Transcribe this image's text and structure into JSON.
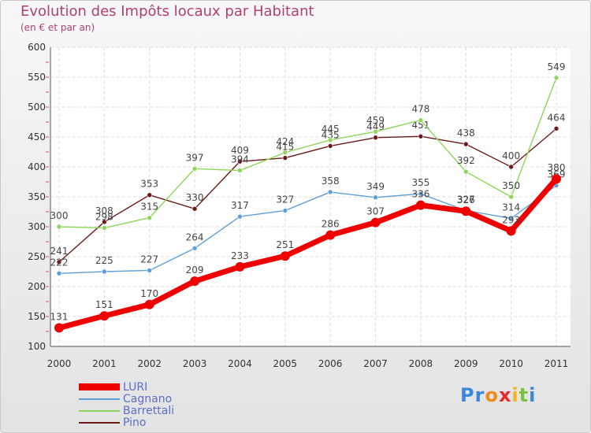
{
  "chart_data": {
    "type": "line",
    "title": "Evolution des Impôts locaux par Habitant",
    "subtitle": "(en € et par an)",
    "categories": [
      "2000",
      "2001",
      "2002",
      "2003",
      "2004",
      "2005",
      "2006",
      "2007",
      "2008",
      "2009",
      "2010",
      "2011"
    ],
    "y_ticks": [
      "100",
      "150",
      "200",
      "250",
      "300",
      "350",
      "400",
      "450",
      "500",
      "550",
      "600"
    ],
    "ylim": [
      100,
      600
    ],
    "grid": true,
    "legend": "bottom-left",
    "series": [
      {
        "name": "Pino",
        "color": "#6b1a1a",
        "values": [
          241,
          308,
          353,
          330,
          409,
          415,
          435,
          449,
          451,
          438,
          400,
          464
        ],
        "labels": [
          "241",
          "308",
          "353",
          "330",
          "409",
          "415",
          "435",
          "449",
          "451",
          "438",
          "400",
          "464"
        ]
      },
      {
        "name": "Barrettali",
        "color": "#8ed65a",
        "values": [
          300,
          298,
          315,
          397,
          394,
          424,
          445,
          459,
          478,
          392,
          350,
          549
        ],
        "labels": [
          "300",
          "298",
          "315",
          "397",
          "394",
          "424",
          "445",
          "459",
          "478",
          "392",
          "350",
          "549"
        ]
      },
      {
        "name": "Cagnano",
        "color": "#5f9ed6",
        "values": [
          222,
          225,
          227,
          264,
          317,
          327,
          358,
          349,
          355,
          327,
          314,
          369
        ],
        "labels": [
          "222",
          "225",
          "227",
          "264",
          "317",
          "327",
          "358",
          "349",
          "355",
          "327",
          "314",
          "369"
        ]
      },
      {
        "name": "LURI",
        "color": "#ee0000",
        "values": [
          131,
          151,
          170,
          209,
          233,
          251,
          286,
          307,
          336,
          326,
          293,
          380
        ],
        "labels": [
          "131",
          "151",
          "170",
          "209",
          "233",
          "251",
          "286",
          "307",
          "336",
          "326",
          "293",
          "380"
        ]
      }
    ]
  },
  "legend_items": [
    "LURI",
    "Cagnano",
    "Barrettali",
    "Pino"
  ],
  "legend_colors": [
    "#ee0000",
    "#5f9ed6",
    "#8ed65a",
    "#6b1a1a"
  ],
  "logo": {
    "letters": [
      "P",
      "r",
      "o",
      "x",
      "i",
      "t",
      "i"
    ],
    "colors": [
      "#3a86d8",
      "#3a86d8",
      "#f08a1c",
      "#e82a2a",
      "#f2b51c",
      "#79c23e",
      "#3a86d8"
    ]
  }
}
